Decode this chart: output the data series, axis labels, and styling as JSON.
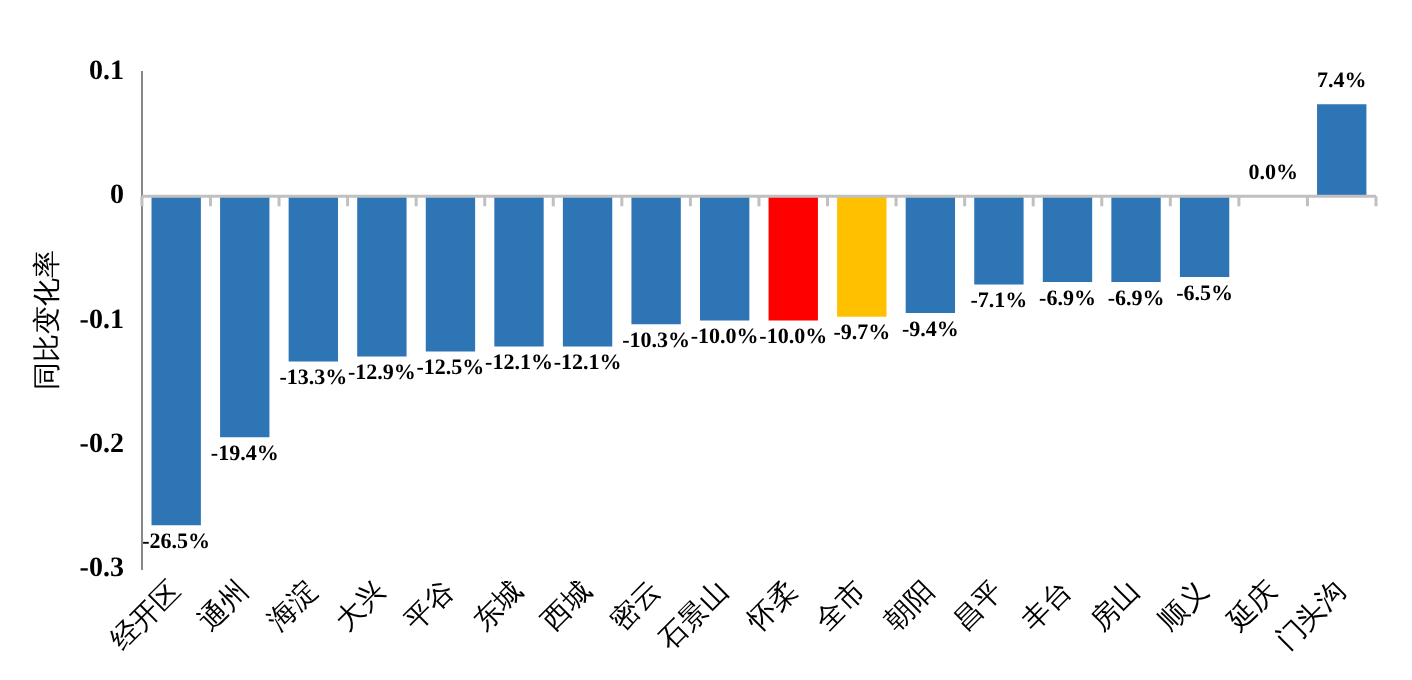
{
  "chart_data": {
    "type": "bar",
    "ylabel": "同比变化率",
    "categories": [
      "经开区",
      "通州",
      "海淀",
      "大兴",
      "平谷",
      "东城",
      "西城",
      "密云",
      "石景山",
      "怀柔",
      "全市",
      "朝阳",
      "昌平",
      "丰台",
      "房山",
      "顺义",
      "延庆",
      "门头沟"
    ],
    "values": [
      -0.265,
      -0.194,
      -0.133,
      -0.129,
      -0.125,
      -0.121,
      -0.121,
      -0.103,
      -0.1,
      -0.1,
      -0.097,
      -0.094,
      -0.071,
      -0.069,
      -0.069,
      -0.065,
      0.0,
      0.074
    ],
    "colors": [
      "#2e75b6",
      "#2e75b6",
      "#2e75b6",
      "#2e75b6",
      "#2e75b6",
      "#2e75b6",
      "#2e75b6",
      "#2e75b6",
      "#2e75b6",
      "#ff0000",
      "#ffc000",
      "#2e75b6",
      "#2e75b6",
      "#2e75b6",
      "#2e75b6",
      "#2e75b6",
      "#2e75b6",
      "#2e75b6"
    ],
    "value_labels": [
      "-26.5%",
      "-19.4%",
      "-13.3%",
      "-12.9%",
      "-12.5%",
      "-12.1%",
      "-12.1%",
      "-10.3%",
      "-10.0%",
      "-10.0%",
      "-9.7%",
      "-9.4%",
      "-7.1%",
      "-6.9%",
      "-6.9%",
      "-6.5%",
      "0.0%",
      "7.4%"
    ],
    "ylim": [
      -0.3,
      0.1
    ],
    "yticks": [
      0.1,
      0,
      -0.1,
      -0.2,
      -0.3
    ],
    "legend": false
  }
}
